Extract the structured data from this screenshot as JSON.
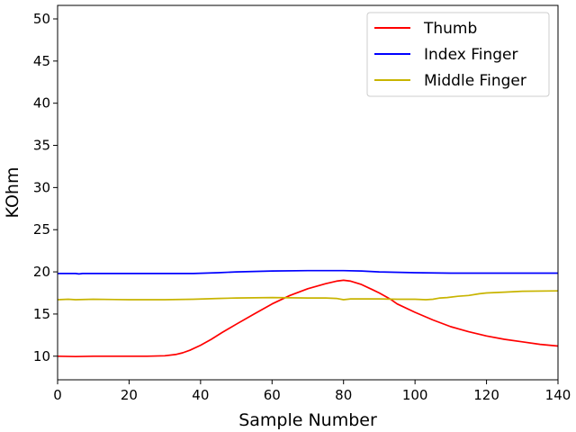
{
  "chart_data": {
    "type": "line",
    "xlabel": "Sample Number",
    "ylabel": "KOhm",
    "xlim": [
      0,
      140
    ],
    "ylim": [
      7.2,
      51.6
    ],
    "xticks": [
      0,
      20,
      40,
      60,
      80,
      100,
      120,
      140
    ],
    "yticks": [
      10,
      15,
      20,
      25,
      30,
      35,
      40,
      45,
      50
    ],
    "grid": false,
    "legend_position": "top-right",
    "series": [
      {
        "name": "Thumb",
        "color": "#ff0000",
        "x": [
          0,
          5,
          10,
          15,
          20,
          25,
          30,
          33,
          35,
          37,
          40,
          43,
          46,
          50,
          55,
          60,
          65,
          70,
          75,
          78,
          80,
          82,
          85,
          88,
          90,
          93,
          95,
          100,
          105,
          110,
          115,
          120,
          125,
          130,
          135,
          140
        ],
        "y": [
          10.0,
          9.95,
          10.0,
          10.0,
          10.0,
          10.0,
          10.05,
          10.2,
          10.4,
          10.7,
          11.3,
          12.0,
          12.8,
          13.8,
          15.0,
          16.2,
          17.2,
          18.0,
          18.6,
          18.9,
          19.0,
          18.9,
          18.5,
          17.9,
          17.5,
          16.8,
          16.2,
          15.2,
          14.3,
          13.5,
          12.9,
          12.4,
          12.0,
          11.7,
          11.4,
          11.2
        ]
      },
      {
        "name": "Index Finger",
        "color": "#0000ff",
        "x": [
          0,
          5,
          6,
          7,
          10,
          15,
          20,
          30,
          38,
          45,
          50,
          60,
          70,
          80,
          85,
          90,
          100,
          110,
          120,
          130,
          140
        ],
        "y": [
          19.8,
          19.8,
          19.75,
          19.8,
          19.8,
          19.8,
          19.8,
          19.8,
          19.8,
          19.9,
          20.0,
          20.1,
          20.15,
          20.15,
          20.1,
          20.0,
          19.9,
          19.85,
          19.85,
          19.85,
          19.85
        ]
      },
      {
        "name": "Middle Finger",
        "color": "#c8b400",
        "x": [
          0,
          3,
          5,
          10,
          20,
          30,
          38,
          45,
          50,
          60,
          70,
          75,
          78,
          80,
          82,
          85,
          90,
          95,
          100,
          103,
          105,
          107,
          109,
          112,
          115,
          118,
          120,
          125,
          130,
          140
        ],
        "y": [
          16.7,
          16.75,
          16.7,
          16.75,
          16.7,
          16.7,
          16.75,
          16.85,
          16.9,
          16.95,
          16.9,
          16.9,
          16.85,
          16.7,
          16.8,
          16.8,
          16.8,
          16.75,
          16.75,
          16.7,
          16.75,
          16.9,
          16.95,
          17.1,
          17.2,
          17.4,
          17.5,
          17.6,
          17.7,
          17.75
        ]
      }
    ]
  }
}
